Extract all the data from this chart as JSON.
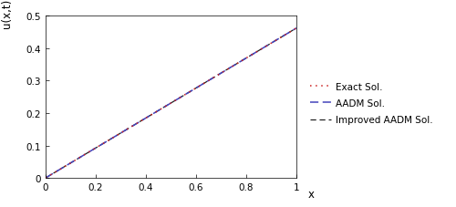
{
  "x_min": 0.0,
  "x_max": 1.0,
  "y_min": 0.0,
  "y_max": 0.5,
  "xlabel": "x",
  "ylabel": "u(x,t)",
  "x_ticks": [
    0.0,
    0.2,
    0.4,
    0.6,
    0.8,
    1.0
  ],
  "y_ticks": [
    0.0,
    0.1,
    0.2,
    0.3,
    0.4,
    0.5
  ],
  "exact_color": "#cc2222",
  "aadm_color": "#4444bb",
  "improved_color": "#222222",
  "exact_label": "Exact Sol.",
  "aadm_label": "AADM Sol.",
  "improved_label": "Improved AADM Sol.",
  "slope": 0.462,
  "legend_fontsize": 7.5,
  "axis_label_fontsize": 8.5,
  "tick_fontsize": 7.5,
  "fig_width": 5.0,
  "fig_height": 2.28,
  "dpi": 100
}
